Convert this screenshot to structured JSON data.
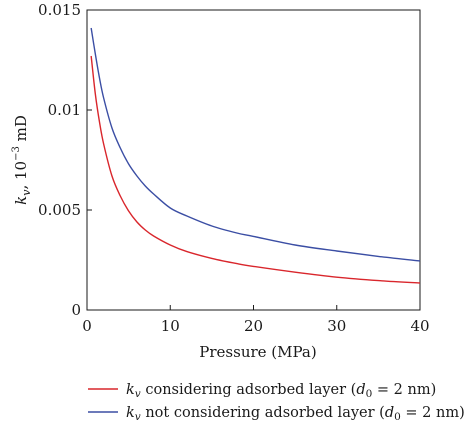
{
  "chart_data": {
    "type": "line",
    "xlabel": "Pressure (MPa)",
    "ylabel": {
      "base": "k",
      "sub": "v",
      "rest": ", 10",
      "sup": "−3",
      "unit": " mD"
    },
    "xlim": [
      0,
      40
    ],
    "ylim": [
      0,
      0.015
    ],
    "xticks": [
      0,
      10,
      20,
      30,
      40
    ],
    "yticks": [
      0,
      0.005,
      0.01,
      0.015
    ],
    "xtick_labels": [
      "0",
      "10",
      "20",
      "30",
      "40"
    ],
    "ytick_labels": [
      "0",
      "0.005",
      "0.01",
      "0.015"
    ],
    "grid": false,
    "legend_placement": "bottom",
    "series": [
      {
        "color": "#d9262c",
        "legend": {
          "k": "k",
          "sub": "v",
          "mid": " considering adsorbed layer (",
          "d": "d",
          "dsub": "0",
          "tail": " = 2 nm)"
        },
        "x": [
          0.5,
          1,
          1.5,
          2,
          3,
          4,
          5,
          6,
          7,
          8,
          10,
          12,
          15,
          18,
          20,
          25,
          30,
          35,
          40
        ],
        "y": [
          0.0127,
          0.0108,
          0.0094,
          0.0083,
          0.0067,
          0.0057,
          0.00495,
          0.0044,
          0.004,
          0.0037,
          0.00325,
          0.00292,
          0.00258,
          0.00232,
          0.00218,
          0.00189,
          0.00164,
          0.00147,
          0.00135
        ]
      },
      {
        "color": "#3b4ea4",
        "legend": {
          "k": "k",
          "sub": "v",
          "mid": " not considering adsorbed layer (",
          "d": "d",
          "dsub": "0",
          "tail": " = 2 nm)"
        },
        "x": [
          0.5,
          1,
          1.5,
          2,
          3,
          4,
          5,
          6,
          7,
          8,
          10,
          12,
          15,
          18,
          20,
          25,
          30,
          35,
          40
        ],
        "y": [
          0.0141,
          0.0128,
          0.0116,
          0.0106,
          0.0091,
          0.0081,
          0.0073,
          0.0067,
          0.0062,
          0.0058,
          0.0051,
          0.0047,
          0.0042,
          0.00385,
          0.00368,
          0.00325,
          0.00295,
          0.00268,
          0.00245
        ]
      }
    ]
  }
}
